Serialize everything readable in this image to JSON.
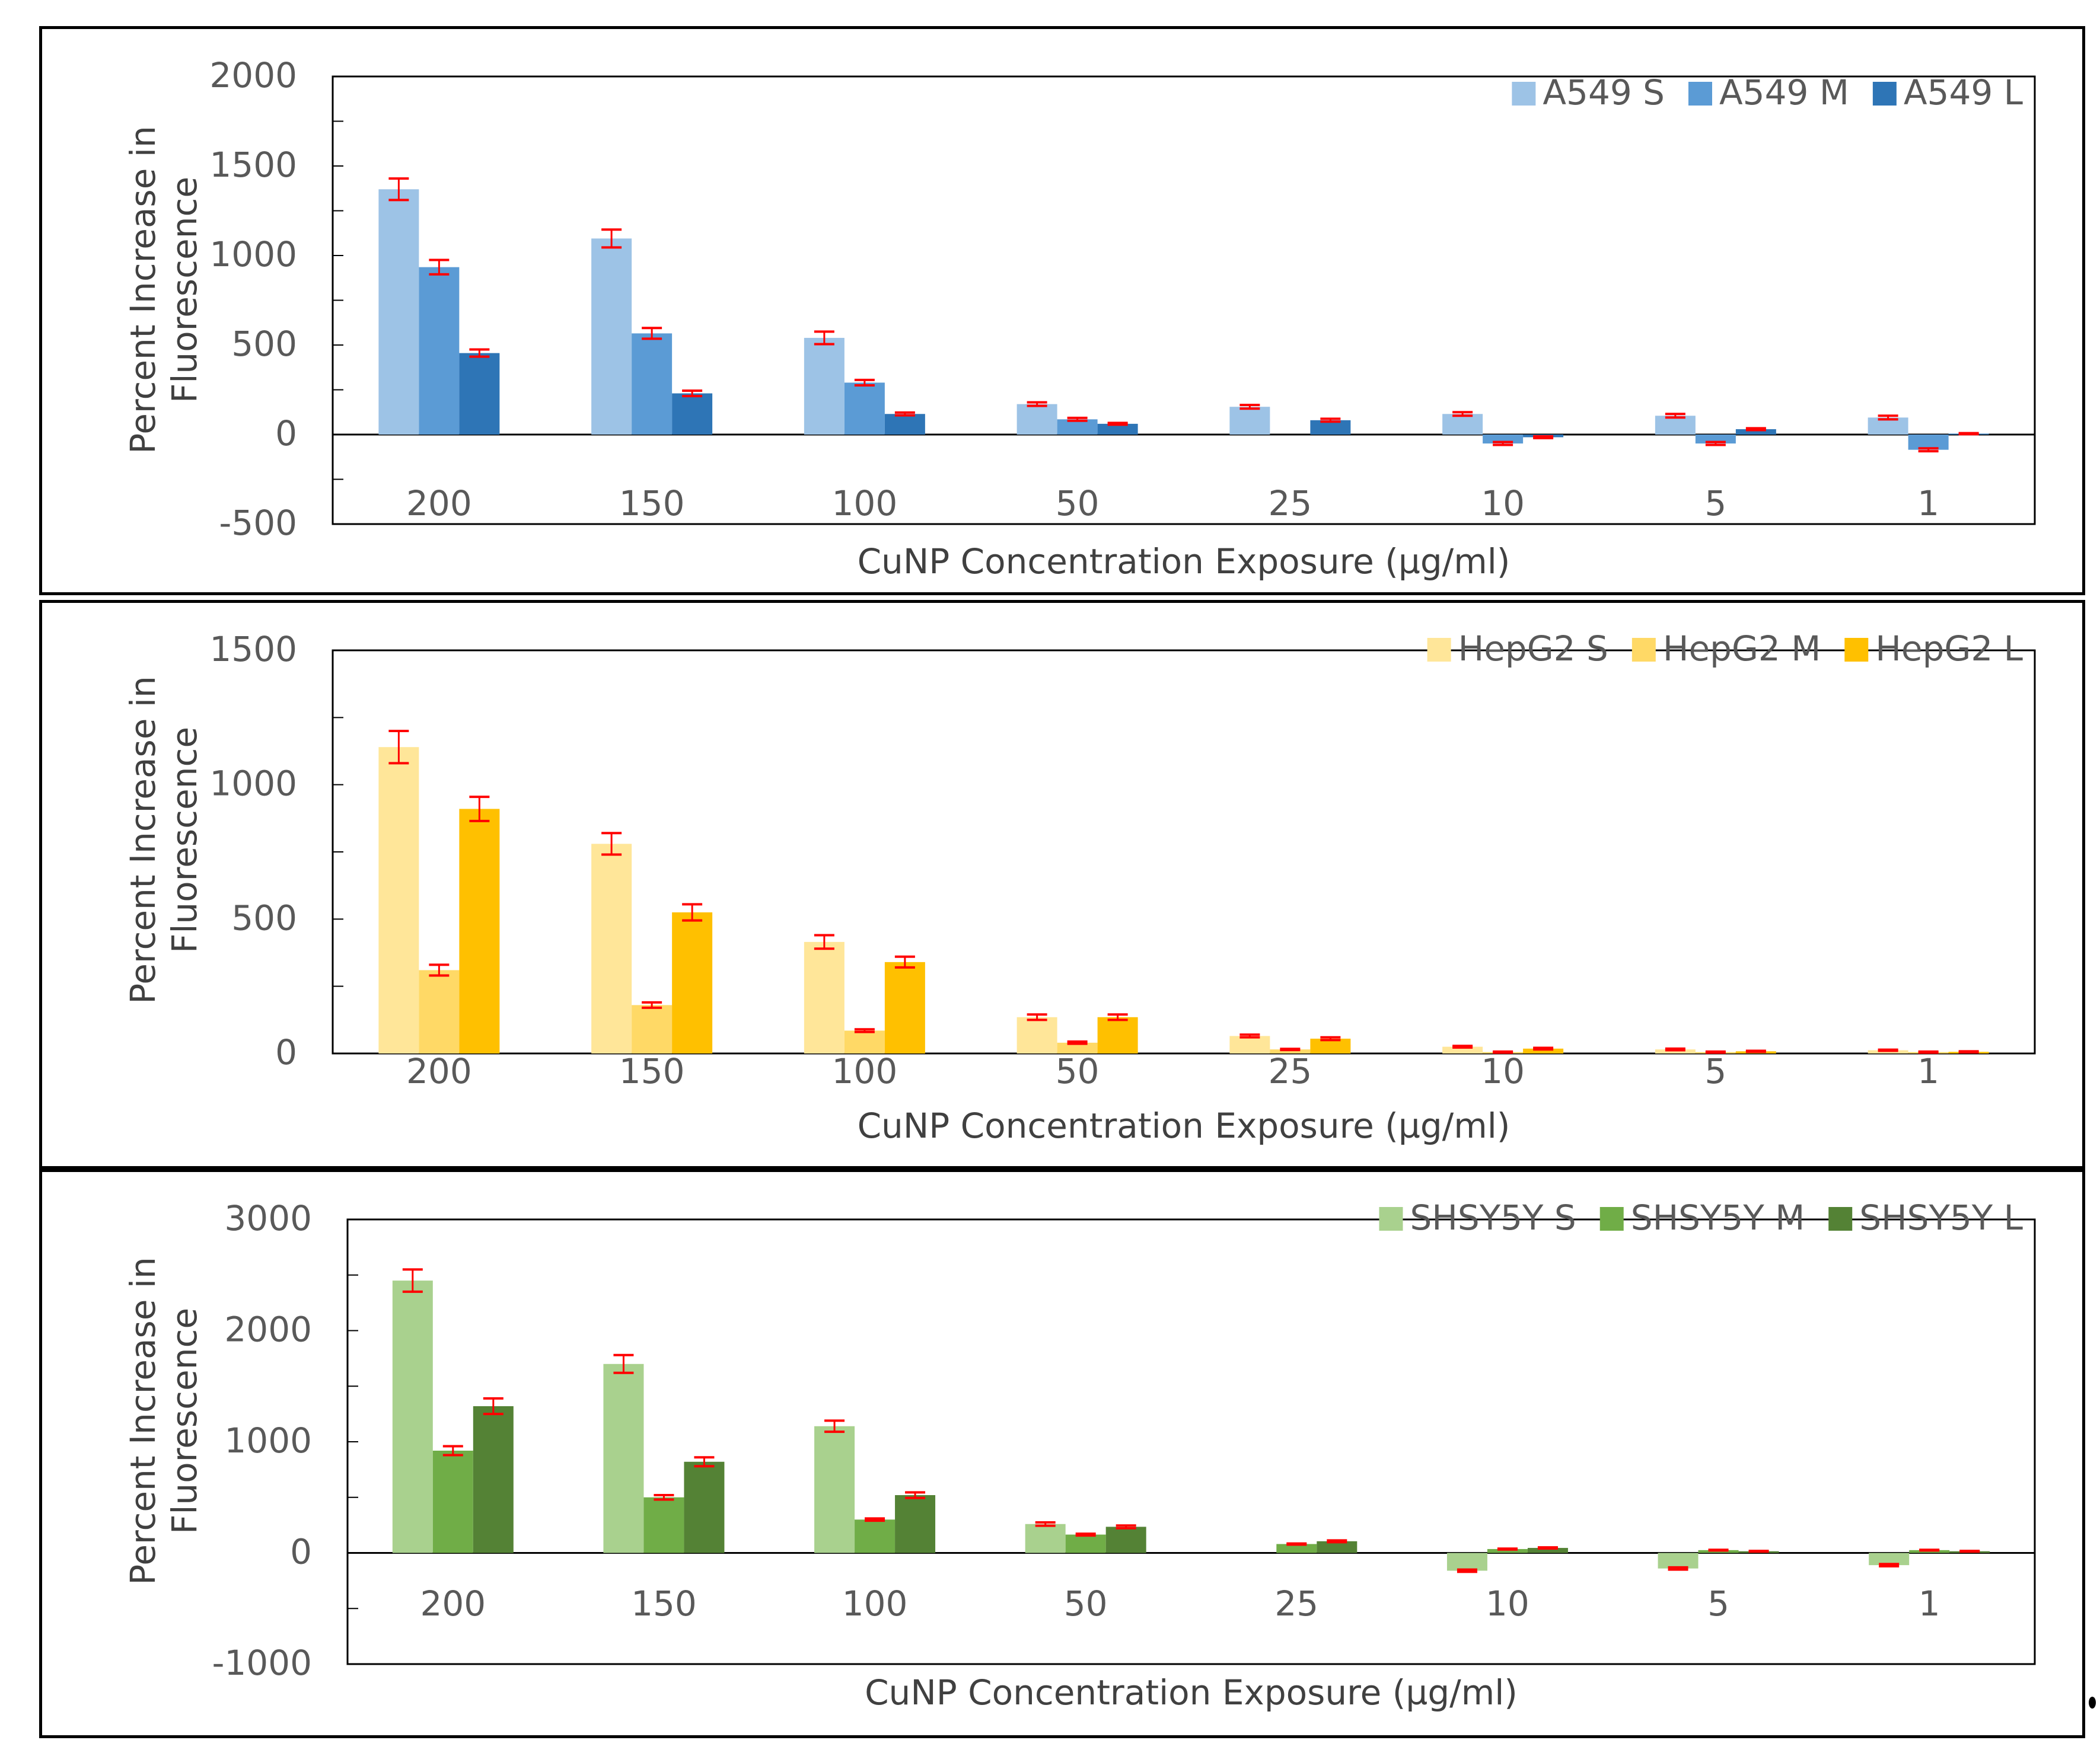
{
  "chart_data": [
    {
      "type": "bar",
      "title": "",
      "xlabel": "CuNP Concentration Exposure (µg/ml)",
      "ylabel_lines": [
        "Percent Increase in",
        "Fluorescence"
      ],
      "ylim": [
        -500,
        2000
      ],
      "yticks": [
        -500,
        0,
        500,
        1000,
        1500,
        2000
      ],
      "ytick_labels": [
        "-500",
        "0",
        "500",
        "1000",
        "1500",
        "2000"
      ],
      "categories": [
        "200",
        "150",
        "100",
        "50",
        "25",
        "10",
        "5",
        "1"
      ],
      "series": [
        {
          "name": "A549 S",
          "color": "#9dc3e6",
          "values": [
            1370,
            1095,
            540,
            170,
            155,
            115,
            105,
            95
          ],
          "errors": [
            60,
            50,
            35,
            10,
            10,
            10,
            10,
            10
          ]
        },
        {
          "name": "A549 M",
          "color": "#5b9bd5",
          "values": [
            935,
            565,
            290,
            85,
            0,
            -50,
            -50,
            -85
          ],
          "errors": [
            40,
            30,
            15,
            8,
            0,
            8,
            8,
            8
          ]
        },
        {
          "name": "A549 L",
          "color": "#2e75b6",
          "values": [
            455,
            230,
            115,
            60,
            80,
            -15,
            30,
            5
          ],
          "errors": [
            20,
            15,
            8,
            5,
            8,
            5,
            5,
            3
          ]
        }
      ],
      "legend_position": "top-right",
      "grid": false
    },
    {
      "type": "bar",
      "title": "",
      "xlabel": "CuNP Concentration Exposure (µg/ml)",
      "ylabel_lines": [
        "Percent Increase in",
        "Fluorescence"
      ],
      "ylim": [
        0,
        1500
      ],
      "yticks": [
        0,
        500,
        1000,
        1500
      ],
      "ytick_labels": [
        "0",
        "500",
        "1000",
        "1500"
      ],
      "categories": [
        "200",
        "150",
        "100",
        "50",
        "25",
        "10",
        "5",
        "1"
      ],
      "series": [
        {
          "name": "HepG2 S",
          "color": "#ffe699",
          "values": [
            1140,
            780,
            415,
            135,
            65,
            25,
            15,
            12
          ],
          "errors": [
            60,
            40,
            25,
            10,
            5,
            3,
            3,
            2
          ]
        },
        {
          "name": "HepG2 M",
          "color": "#ffd966",
          "values": [
            310,
            180,
            85,
            40,
            15,
            5,
            5,
            5
          ],
          "errors": [
            20,
            10,
            5,
            4,
            2,
            2,
            2,
            2
          ]
        },
        {
          "name": "HepG2 L",
          "color": "#ffc000",
          "values": [
            910,
            525,
            340,
            135,
            55,
            18,
            8,
            6
          ],
          "errors": [
            45,
            30,
            20,
            10,
            5,
            3,
            2,
            2
          ]
        }
      ],
      "legend_position": "top-right",
      "grid": false
    },
    {
      "type": "bar",
      "title": "",
      "xlabel": "CuNP Concentration Exposure (µg/ml)",
      "ylabel_lines": [
        "Percent Increase in",
        "Fluorescence"
      ],
      "ylim": [
        -1000,
        3000
      ],
      "yticks": [
        -1000,
        0,
        1000,
        2000,
        3000
      ],
      "ytick_labels": [
        "-1000",
        "0",
        "1000",
        "2000",
        "3000"
      ],
      "categories": [
        "200",
        "150",
        "100",
        "50",
        "25",
        "10",
        "5",
        "1"
      ],
      "series": [
        {
          "name": "SHSY5Y S",
          "color": "#a9d18e",
          "values": [
            2450,
            1700,
            1140,
            260,
            0,
            -160,
            -140,
            -110
          ],
          "errors": [
            100,
            80,
            50,
            15,
            0,
            10,
            10,
            10
          ]
        },
        {
          "name": "SHSY5Y M",
          "color": "#70ad47",
          "values": [
            920,
            500,
            300,
            165,
            80,
            35,
            25,
            25
          ],
          "errors": [
            40,
            20,
            10,
            8,
            5,
            4,
            3,
            3
          ]
        },
        {
          "name": "SHSY5Y L",
          "color": "#548235",
          "values": [
            1320,
            820,
            520,
            235,
            105,
            45,
            15,
            15
          ],
          "errors": [
            70,
            40,
            25,
            12,
            8,
            5,
            3,
            3
          ]
        }
      ],
      "legend_position": "top-right",
      "grid": false
    }
  ],
  "error_bar_color": "#ff0000"
}
